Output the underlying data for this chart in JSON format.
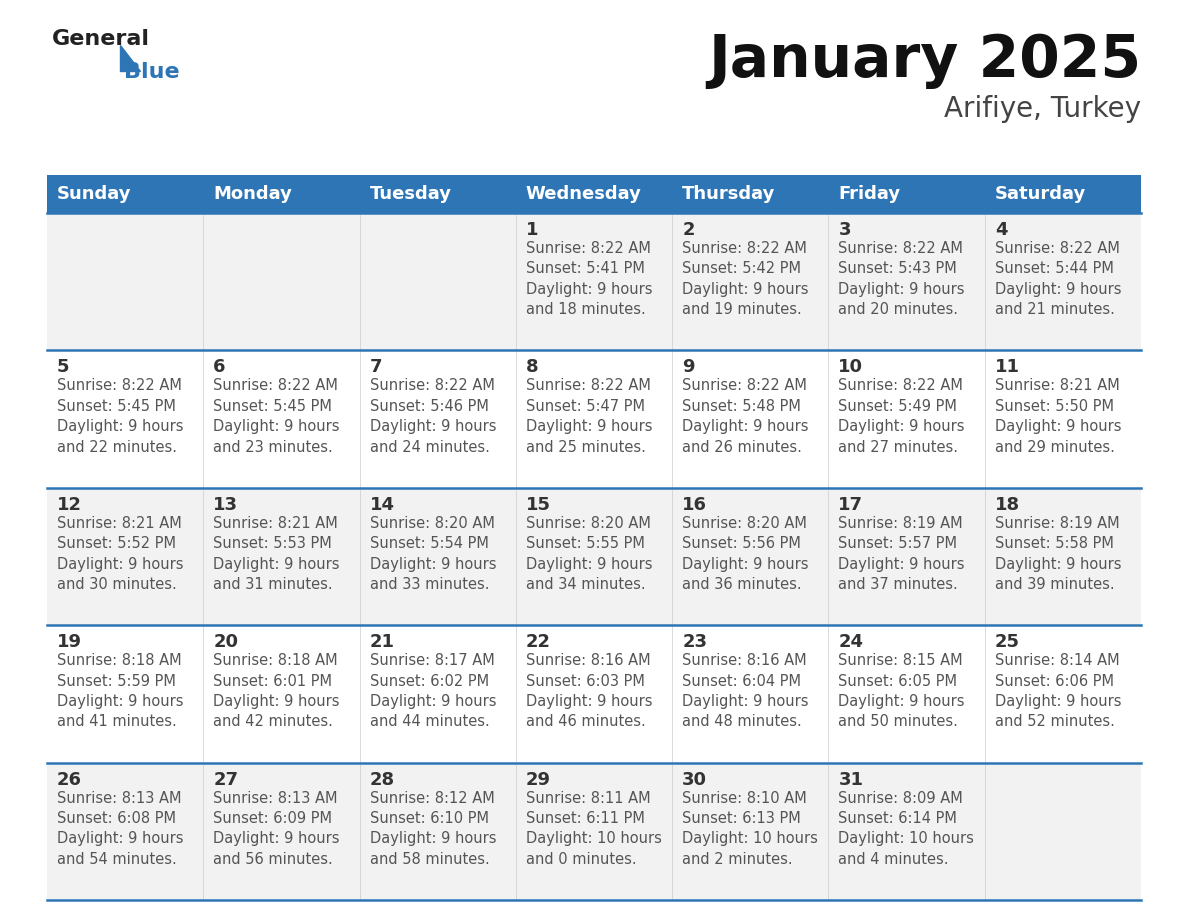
{
  "title": "January 2025",
  "subtitle": "Arifiye, Turkey",
  "days_of_week": [
    "Sunday",
    "Monday",
    "Tuesday",
    "Wednesday",
    "Thursday",
    "Friday",
    "Saturday"
  ],
  "header_bg": "#2E75B6",
  "header_text": "#FFFFFF",
  "cell_bg_even": "#F2F2F2",
  "cell_bg_odd": "#FFFFFF",
  "divider_color": "#2E75B6",
  "text_color": "#555555",
  "day_num_color": "#333333",
  "calendar_data": [
    [
      {
        "day": 0,
        "info": ""
      },
      {
        "day": 0,
        "info": ""
      },
      {
        "day": 0,
        "info": ""
      },
      {
        "day": 1,
        "info": "Sunrise: 8:22 AM\nSunset: 5:41 PM\nDaylight: 9 hours\nand 18 minutes."
      },
      {
        "day": 2,
        "info": "Sunrise: 8:22 AM\nSunset: 5:42 PM\nDaylight: 9 hours\nand 19 minutes."
      },
      {
        "day": 3,
        "info": "Sunrise: 8:22 AM\nSunset: 5:43 PM\nDaylight: 9 hours\nand 20 minutes."
      },
      {
        "day": 4,
        "info": "Sunrise: 8:22 AM\nSunset: 5:44 PM\nDaylight: 9 hours\nand 21 minutes."
      }
    ],
    [
      {
        "day": 5,
        "info": "Sunrise: 8:22 AM\nSunset: 5:45 PM\nDaylight: 9 hours\nand 22 minutes."
      },
      {
        "day": 6,
        "info": "Sunrise: 8:22 AM\nSunset: 5:45 PM\nDaylight: 9 hours\nand 23 minutes."
      },
      {
        "day": 7,
        "info": "Sunrise: 8:22 AM\nSunset: 5:46 PM\nDaylight: 9 hours\nand 24 minutes."
      },
      {
        "day": 8,
        "info": "Sunrise: 8:22 AM\nSunset: 5:47 PM\nDaylight: 9 hours\nand 25 minutes."
      },
      {
        "day": 9,
        "info": "Sunrise: 8:22 AM\nSunset: 5:48 PM\nDaylight: 9 hours\nand 26 minutes."
      },
      {
        "day": 10,
        "info": "Sunrise: 8:22 AM\nSunset: 5:49 PM\nDaylight: 9 hours\nand 27 minutes."
      },
      {
        "day": 11,
        "info": "Sunrise: 8:21 AM\nSunset: 5:50 PM\nDaylight: 9 hours\nand 29 minutes."
      }
    ],
    [
      {
        "day": 12,
        "info": "Sunrise: 8:21 AM\nSunset: 5:52 PM\nDaylight: 9 hours\nand 30 minutes."
      },
      {
        "day": 13,
        "info": "Sunrise: 8:21 AM\nSunset: 5:53 PM\nDaylight: 9 hours\nand 31 minutes."
      },
      {
        "day": 14,
        "info": "Sunrise: 8:20 AM\nSunset: 5:54 PM\nDaylight: 9 hours\nand 33 minutes."
      },
      {
        "day": 15,
        "info": "Sunrise: 8:20 AM\nSunset: 5:55 PM\nDaylight: 9 hours\nand 34 minutes."
      },
      {
        "day": 16,
        "info": "Sunrise: 8:20 AM\nSunset: 5:56 PM\nDaylight: 9 hours\nand 36 minutes."
      },
      {
        "day": 17,
        "info": "Sunrise: 8:19 AM\nSunset: 5:57 PM\nDaylight: 9 hours\nand 37 minutes."
      },
      {
        "day": 18,
        "info": "Sunrise: 8:19 AM\nSunset: 5:58 PM\nDaylight: 9 hours\nand 39 minutes."
      }
    ],
    [
      {
        "day": 19,
        "info": "Sunrise: 8:18 AM\nSunset: 5:59 PM\nDaylight: 9 hours\nand 41 minutes."
      },
      {
        "day": 20,
        "info": "Sunrise: 8:18 AM\nSunset: 6:01 PM\nDaylight: 9 hours\nand 42 minutes."
      },
      {
        "day": 21,
        "info": "Sunrise: 8:17 AM\nSunset: 6:02 PM\nDaylight: 9 hours\nand 44 minutes."
      },
      {
        "day": 22,
        "info": "Sunrise: 8:16 AM\nSunset: 6:03 PM\nDaylight: 9 hours\nand 46 minutes."
      },
      {
        "day": 23,
        "info": "Sunrise: 8:16 AM\nSunset: 6:04 PM\nDaylight: 9 hours\nand 48 minutes."
      },
      {
        "day": 24,
        "info": "Sunrise: 8:15 AM\nSunset: 6:05 PM\nDaylight: 9 hours\nand 50 minutes."
      },
      {
        "day": 25,
        "info": "Sunrise: 8:14 AM\nSunset: 6:06 PM\nDaylight: 9 hours\nand 52 minutes."
      }
    ],
    [
      {
        "day": 26,
        "info": "Sunrise: 8:13 AM\nSunset: 6:08 PM\nDaylight: 9 hours\nand 54 minutes."
      },
      {
        "day": 27,
        "info": "Sunrise: 8:13 AM\nSunset: 6:09 PM\nDaylight: 9 hours\nand 56 minutes."
      },
      {
        "day": 28,
        "info": "Sunrise: 8:12 AM\nSunset: 6:10 PM\nDaylight: 9 hours\nand 58 minutes."
      },
      {
        "day": 29,
        "info": "Sunrise: 8:11 AM\nSunset: 6:11 PM\nDaylight: 10 hours\nand 0 minutes."
      },
      {
        "day": 30,
        "info": "Sunrise: 8:10 AM\nSunset: 6:13 PM\nDaylight: 10 hours\nand 2 minutes."
      },
      {
        "day": 31,
        "info": "Sunrise: 8:09 AM\nSunset: 6:14 PM\nDaylight: 10 hours\nand 4 minutes."
      },
      {
        "day": 0,
        "info": ""
      }
    ]
  ],
  "logo_general_color": "#222222",
  "logo_blue_color": "#2E75B6",
  "title_fontsize": 42,
  "subtitle_fontsize": 20,
  "dow_fontsize": 13,
  "day_num_fontsize": 13,
  "info_fontsize": 10.5,
  "fig_width": 11.88,
  "fig_height": 9.18,
  "dpi": 100
}
